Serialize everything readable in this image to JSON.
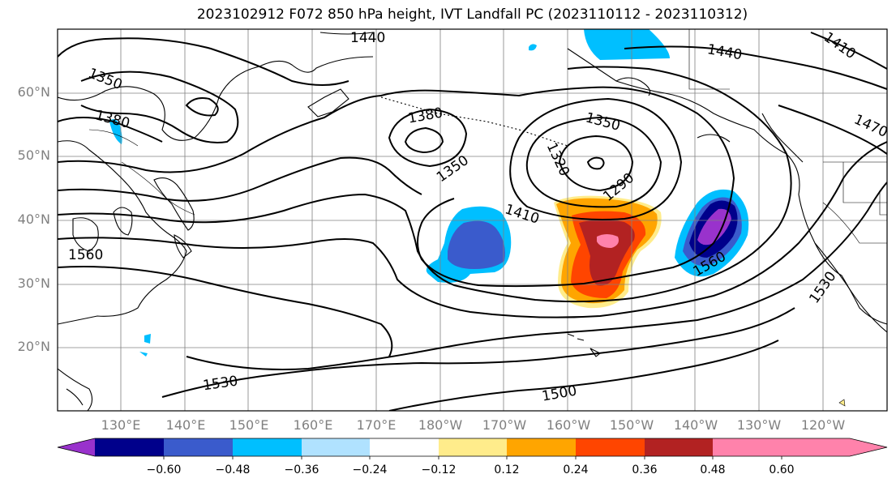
{
  "title": "2023102912 F072 850 hPa height, IVT Landfall PC (2023110112 - 2023110312)",
  "latitude_labels": [
    "60°N",
    "50°N",
    "40°N",
    "30°N",
    "20°N"
  ],
  "longitude_labels": [
    "130°E",
    "140°E",
    "150°E",
    "160°E",
    "170°E",
    "180°W",
    "170°W",
    "160°W",
    "150°W",
    "140°W",
    "130°W",
    "120°W"
  ],
  "contour_labels": [
    "1440",
    "1350",
    "1380",
    "1380",
    "1350",
    "1350",
    "1320",
    "1290",
    "1410",
    "1440",
    "1410",
    "1470",
    "1560",
    "1560",
    "1530",
    "1530",
    "1500"
  ],
  "colorbar": {
    "ticks": [
      "−0.60",
      "−0.48",
      "−0.36",
      "−0.24",
      "−0.12",
      "0.12",
      "0.24",
      "0.36",
      "0.48",
      "0.60"
    ],
    "colors": [
      "#9932cc",
      "#00008b",
      "#3a5bcc",
      "#00bfff",
      "#b0e2ff",
      "#ffffff",
      "#ffec8b",
      "#ffa500",
      "#ff4500",
      "#b22222",
      "#ff82ab"
    ]
  },
  "colors": {
    "land_outline": "#000000",
    "grid": "#808080"
  }
}
